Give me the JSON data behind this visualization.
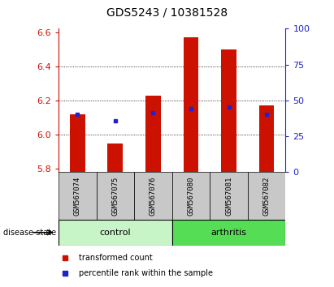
{
  "title": "GDS5243 / 10381528",
  "samples": [
    "GSM567074",
    "GSM567075",
    "GSM567076",
    "GSM567080",
    "GSM567081",
    "GSM567082"
  ],
  "red_tops": [
    6.12,
    5.95,
    6.23,
    6.57,
    6.5,
    6.17
  ],
  "blue_vals": [
    6.12,
    6.08,
    6.13,
    6.15,
    6.16,
    6.12
  ],
  "base": 5.78,
  "ylim": [
    5.78,
    6.62
  ],
  "yticks_left": [
    5.8,
    6.0,
    6.2,
    6.4,
    6.6
  ],
  "yticks_right": [
    0,
    25,
    50,
    75,
    100
  ],
  "control_color": "#c8f5c8",
  "arthritis_color": "#55dd55",
  "red_color": "#cc1100",
  "blue_color": "#2222cc",
  "bar_bg_color": "#c8c8c8",
  "legend_labels": [
    "transformed count",
    "percentile rank within the sample"
  ],
  "disease_label": "disease state",
  "control_label": "control",
  "arthritis_label": "arthritis",
  "bar_width": 0.4,
  "title_fontsize": 10,
  "tick_fontsize": 8,
  "label_fontsize": 7,
  "sample_fontsize": 6.5,
  "group_fontsize": 8
}
